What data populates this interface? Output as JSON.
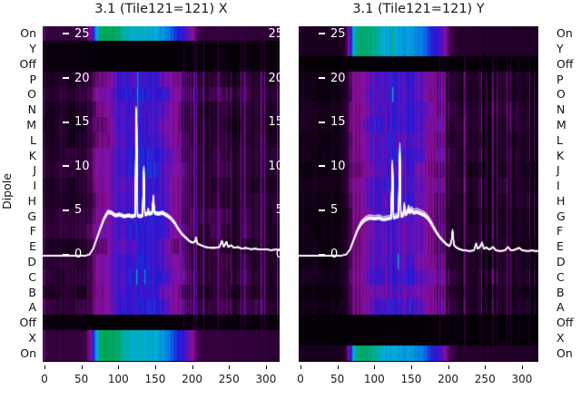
{
  "titles": {
    "left": "3.1 (Tile121=121) X",
    "right": "3.1 (Tile121=121) Y"
  },
  "ylabel": "Dipole",
  "row_labels": [
    "On",
    "Y",
    "Off",
    "P",
    "O",
    "N",
    "M",
    "L",
    "K",
    "J",
    "I",
    "H",
    "G",
    "F",
    "E",
    "D",
    "C",
    "B",
    "A",
    "Off",
    "X",
    "On"
  ],
  "x_ticks": [
    0,
    50,
    100,
    150,
    200,
    250,
    300
  ],
  "value_ticks": [
    {
      "v": 25,
      "label": "25"
    },
    {
      "v": 20,
      "label": "20"
    },
    {
      "v": 15,
      "label": "15"
    },
    {
      "v": 10,
      "label": "10"
    },
    {
      "v": 5,
      "label": "5"
    },
    {
      "v": 0,
      "label": "0"
    }
  ],
  "colors": {
    "background": "#ffffff",
    "text": "#1a1a1a",
    "inner_tick_text": "#ffffff",
    "curve": "#ffffff"
  },
  "chart_data": {
    "type": "heatmap",
    "subtype": "dipole-power-spectra-with-line-overlay",
    "x_range": [
      0,
      318
    ],
    "x_tick_values": [
      0,
      50,
      100,
      150,
      200,
      250,
      300
    ],
    "value_tick_values_top_to_bottom": [
      25,
      20,
      15,
      10,
      5,
      0
    ],
    "rows_top_to_bottom": [
      "On",
      "Y",
      "Off",
      "P",
      "O",
      "N",
      "M",
      "L",
      "K",
      "J",
      "I",
      "H",
      "G",
      "F",
      "E",
      "D",
      "C",
      "B",
      "A",
      "Off",
      "X",
      "On"
    ],
    "colormap": [
      [
        0.0,
        [
          0,
          0,
          0
        ]
      ],
      [
        0.06,
        [
          10,
          0,
          13
        ]
      ],
      [
        0.14,
        [
          38,
          0,
          46
        ]
      ],
      [
        0.22,
        [
          70,
          4,
          82
        ]
      ],
      [
        0.3,
        [
          139,
          15,
          155
        ]
      ],
      [
        0.38,
        [
          90,
          18,
          190
        ]
      ],
      [
        0.46,
        [
          35,
          23,
          214
        ]
      ],
      [
        0.55,
        [
          10,
          111,
          232
        ]
      ],
      [
        0.68,
        [
          0,
          176,
          216
        ]
      ],
      [
        0.8,
        [
          0,
          170,
          120
        ]
      ],
      [
        0.88,
        [
          0,
          163,
          68
        ]
      ],
      [
        1.0,
        [
          32,
          192,
          64
        ]
      ]
    ],
    "profiles": {
      "bright": [
        [
          -3,
          0.17
        ],
        [
          52,
          0.18
        ],
        [
          60,
          0.26
        ],
        [
          64,
          0.4
        ],
        [
          69,
          0.6
        ],
        [
          74,
          0.8
        ],
        [
          80,
          0.85
        ],
        [
          97,
          0.83
        ],
        [
          107,
          0.75
        ],
        [
          117,
          0.7
        ],
        [
          148,
          0.67
        ],
        [
          162,
          0.63
        ],
        [
          170,
          0.56
        ],
        [
          178,
          0.49
        ],
        [
          190,
          0.42
        ],
        [
          198,
          0.32
        ],
        [
          206,
          0.23
        ],
        [
          213,
          0.18
        ],
        [
          318,
          0.155
        ]
      ],
      "dipole": [
        [
          -3,
          0.135
        ],
        [
          52,
          0.14
        ],
        [
          60,
          0.19
        ],
        [
          68,
          0.28
        ],
        [
          84,
          0.3
        ],
        [
          91,
          0.36
        ],
        [
          99,
          0.41
        ],
        [
          125,
          0.425
        ],
        [
          158,
          0.42
        ],
        [
          168,
          0.37
        ],
        [
          176,
          0.31
        ],
        [
          188,
          0.285
        ],
        [
          197,
          0.225
        ],
        [
          208,
          0.165
        ],
        [
          318,
          0.15
        ]
      ],
      "dark": [
        [
          -3,
          0.05
        ],
        [
          55,
          0.05
        ],
        [
          70,
          0.04
        ],
        [
          180,
          0.04
        ],
        [
          192,
          0.052
        ],
        [
          318,
          0.058
        ]
      ]
    },
    "stripe_amp": [
      [
        -3,
        0.45
      ],
      [
        55,
        0.45
      ],
      [
        68,
        0.18
      ],
      [
        182,
        0.18
      ],
      [
        192,
        0.75
      ],
      [
        318,
        0.8
      ]
    ],
    "panels": [
      {
        "id": "x",
        "pol": "X",
        "seed": 1,
        "base": 1.0,
        "stripe": 1.0,
        "dim_left": 1.0,
        "dim_right": 1.0,
        "edge_labels": true,
        "row_types": [
          "bright",
          "dark",
          "dark",
          "dipole",
          "dipole",
          "dipole",
          "dipole",
          "dipole",
          "dipole",
          "dipole",
          "dipole",
          "dipole",
          "dipole",
          "dipole",
          "dipole",
          "dipole",
          "dipole",
          "dipole",
          "dipole",
          "dark",
          "bright",
          "bright"
        ],
        "lines": [
          {
            "x": 126,
            "r0": 3,
            "r1": 5,
            "t": 0.62
          },
          {
            "x": 124,
            "r0": 16,
            "r1": 16,
            "t": 0.7
          },
          {
            "x": 135,
            "r0": 16,
            "r1": 16,
            "t": 0.6
          },
          {
            "x": 147,
            "r0": 18,
            "r1": 18,
            "t": 0.5
          },
          {
            "x": 148,
            "r0": 20,
            "r1": 21,
            "t": 0.73
          }
        ],
        "curve": [
          [
            -3,
            0
          ],
          [
            55,
            0
          ],
          [
            61,
            0.15
          ],
          [
            66,
            0.8
          ],
          [
            71,
            2.0
          ],
          [
            76,
            3.2
          ],
          [
            81,
            4.3
          ],
          [
            86,
            5.0
          ],
          [
            91,
            4.9
          ],
          [
            96,
            4.6
          ],
          [
            102,
            4.7
          ],
          [
            108,
            4.5
          ],
          [
            114,
            4.6
          ],
          [
            119,
            4.5
          ],
          [
            123,
            4.6
          ],
          [
            124.5,
            19.0
          ],
          [
            126,
            4.6
          ],
          [
            130,
            4.5
          ],
          [
            133,
            4.6
          ],
          [
            134.5,
            10.6
          ],
          [
            136,
            4.7
          ],
          [
            139.5,
            4.8
          ],
          [
            140.5,
            5.4
          ],
          [
            141.5,
            4.8
          ],
          [
            146,
            4.9
          ],
          [
            147.5,
            6.8
          ],
          [
            149,
            4.9
          ],
          [
            154,
            4.8
          ],
          [
            160,
            4.9
          ],
          [
            166,
            4.6
          ],
          [
            171,
            4.3
          ],
          [
            176,
            3.8
          ],
          [
            181,
            3.1
          ],
          [
            186,
            2.5
          ],
          [
            191,
            2.1
          ],
          [
            196,
            1.7
          ],
          [
            200,
            1.5
          ],
          [
            204,
            1.6
          ],
          [
            205.5,
            2.1
          ],
          [
            207,
            1.4
          ],
          [
            212,
            1.2
          ],
          [
            218,
            1.0
          ],
          [
            225,
            0.9
          ],
          [
            232,
            0.9
          ],
          [
            237,
            1.0
          ],
          [
            240.5,
            1.7
          ],
          [
            243,
            1.0
          ],
          [
            246.5,
            1.6
          ],
          [
            249,
            1.0
          ],
          [
            253,
            1.2
          ],
          [
            257,
            0.9
          ],
          [
            262,
            1.0
          ],
          [
            267,
            0.8
          ],
          [
            273,
            0.9
          ],
          [
            279,
            0.75
          ],
          [
            286,
            0.8
          ],
          [
            293,
            0.7
          ],
          [
            300,
            0.72
          ],
          [
            307,
            0.65
          ],
          [
            314,
            0.7
          ],
          [
            318,
            0.65
          ]
        ]
      },
      {
        "id": "y",
        "pol": "Y",
        "seed": 2,
        "base": 0.95,
        "stripe": 1.25,
        "dim_left": 0.6,
        "dim_right": 0.8,
        "edge_labels": false,
        "row_types": [
          "bright",
          "bright",
          "dark",
          "dipole",
          "dipole",
          "dipole",
          "dipole",
          "dipole",
          "dipole",
          "dipole",
          "dipole",
          "dipole",
          "dipole",
          "dipole",
          "dipole",
          "dipole",
          "dipole",
          "dipole",
          "dipole",
          "dark",
          "dark",
          "bright"
        ],
        "lines": [
          {
            "x": 124,
            "r0": 0,
            "r1": 1,
            "t": 0.95
          },
          {
            "x": 124,
            "r0": 4,
            "r1": 4,
            "t": 0.7
          },
          {
            "x": 132,
            "r0": 15,
            "r1": 15,
            "t": 0.7
          },
          {
            "x": 147,
            "r0": 18,
            "r1": 18,
            "t": 0.5
          }
        ],
        "curve": [
          [
            -3,
            0
          ],
          [
            55,
            0
          ],
          [
            62,
            0.15
          ],
          [
            67,
            0.7
          ],
          [
            72,
            1.8
          ],
          [
            77,
            2.9
          ],
          [
            82,
            3.7
          ],
          [
            88,
            4.2
          ],
          [
            94,
            4.4
          ],
          [
            100,
            4.3
          ],
          [
            106,
            4.4
          ],
          [
            112,
            4.2
          ],
          [
            118,
            4.3
          ],
          [
            123,
            4.4
          ],
          [
            124.5,
            11.6
          ],
          [
            126,
            4.4
          ],
          [
            129,
            4.5
          ],
          [
            133,
            4.6
          ],
          [
            134.5,
            13.2
          ],
          [
            136,
            4.6
          ],
          [
            139.5,
            4.7
          ],
          [
            140.5,
            6.0
          ],
          [
            142,
            4.8
          ],
          [
            145,
            5.0
          ],
          [
            146.5,
            5.5
          ],
          [
            148,
            5.0
          ],
          [
            150.5,
            5.3
          ],
          [
            153,
            5.0
          ],
          [
            158,
            5.1
          ],
          [
            163,
            4.9
          ],
          [
            168,
            4.7
          ],
          [
            172,
            4.4
          ],
          [
            176,
            3.9
          ],
          [
            180,
            3.3
          ],
          [
            184,
            2.7
          ],
          [
            188,
            2.2
          ],
          [
            193,
            1.7
          ],
          [
            198,
            1.3
          ],
          [
            202,
            1.1
          ],
          [
            204.5,
            1.6
          ],
          [
            206,
            2.9
          ],
          [
            208,
            1.2
          ],
          [
            212,
            0.9
          ],
          [
            217,
            0.7
          ],
          [
            223,
            0.6
          ],
          [
            229,
            0.55
          ],
          [
            235,
            0.6
          ],
          [
            238,
            1.4
          ],
          [
            240,
            0.8
          ],
          [
            243,
            1.0
          ],
          [
            246,
            1.5
          ],
          [
            248.5,
            0.8
          ],
          [
            252,
            0.95
          ],
          [
            256,
            0.7
          ],
          [
            261,
            1.0
          ],
          [
            265,
            0.6
          ],
          [
            271,
            0.55
          ],
          [
            277,
            0.6
          ],
          [
            281,
            1.0
          ],
          [
            285,
            0.6
          ],
          [
            291,
            0.7
          ],
          [
            296,
            0.9
          ],
          [
            301,
            0.6
          ],
          [
            308,
            0.55
          ],
          [
            314,
            0.6
          ],
          [
            318,
            0.55
          ]
        ]
      }
    ]
  }
}
